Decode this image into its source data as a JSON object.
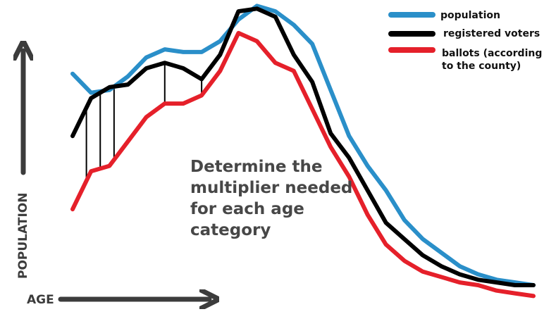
{
  "chart_data": {
    "type": "line",
    "title": "",
    "xlabel": "AGE",
    "ylabel": "POPULATION",
    "grid": false,
    "legend_placement": "top-right",
    "annotation": "Determine the multiplier needed for each age category",
    "xlim": [
      0,
      100
    ],
    "ylim": [
      0,
      100
    ],
    "x": [
      0,
      4,
      8,
      12,
      16,
      20,
      24,
      28,
      32,
      36,
      40,
      44,
      48,
      52,
      56,
      60,
      64,
      68,
      72,
      76,
      80,
      84,
      88,
      92,
      96,
      100
    ],
    "series": [
      {
        "name": "population",
        "color": "#2a8fc9",
        "values": [
          78,
          71,
          72,
          77,
          84,
          87,
          86,
          86,
          90,
          98,
          103,
          101,
          96,
          89,
          72,
          55,
          44,
          35,
          24,
          17,
          12,
          7,
          4,
          2,
          1,
          0
        ]
      },
      {
        "name": "registered voters",
        "color": "#000000",
        "values": [
          55,
          69,
          73,
          74,
          80,
          82,
          80,
          76,
          85,
          101,
          102,
          99,
          85,
          75,
          56,
          47,
          35,
          23,
          17,
          11,
          7,
          4,
          2,
          1,
          0,
          0
        ]
      },
      {
        "name": "ballots (according to the county)",
        "color": "#e5202a",
        "values": [
          28,
          42,
          44,
          53,
          62,
          67,
          67,
          70,
          79,
          93,
          90,
          82,
          79,
          65,
          51,
          40,
          26,
          15,
          9,
          5,
          3,
          1,
          0,
          -2,
          -3,
          -4
        ]
      }
    ],
    "verticals_x": [
      3,
      6,
      9,
      20,
      28
    ]
  },
  "colors": {
    "axis": "#3c3c3c"
  }
}
